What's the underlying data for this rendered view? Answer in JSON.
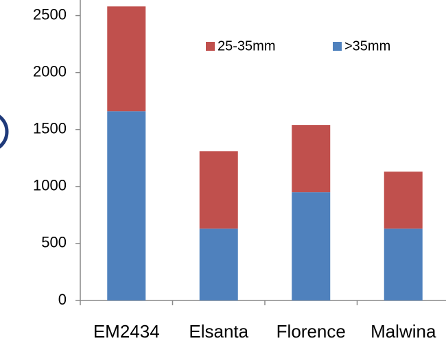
{
  "chart_data": {
    "type": "stacked-bar",
    "categories": [
      "EM2434",
      "Elsanta",
      "Florence",
      "Malwina"
    ],
    "series": [
      {
        "name": ">35mm",
        "color": "#4f81bd",
        "values": [
          1660,
          630,
          950,
          630
        ]
      },
      {
        "name": "25-35mm",
        "color": "#c0504d",
        "values": [
          920,
          680,
          590,
          500
        ]
      }
    ],
    "ylim": [
      0,
      2600
    ],
    "yticks": [
      0,
      500,
      1000,
      1500,
      2000,
      2500
    ],
    "grid": false
  }
}
